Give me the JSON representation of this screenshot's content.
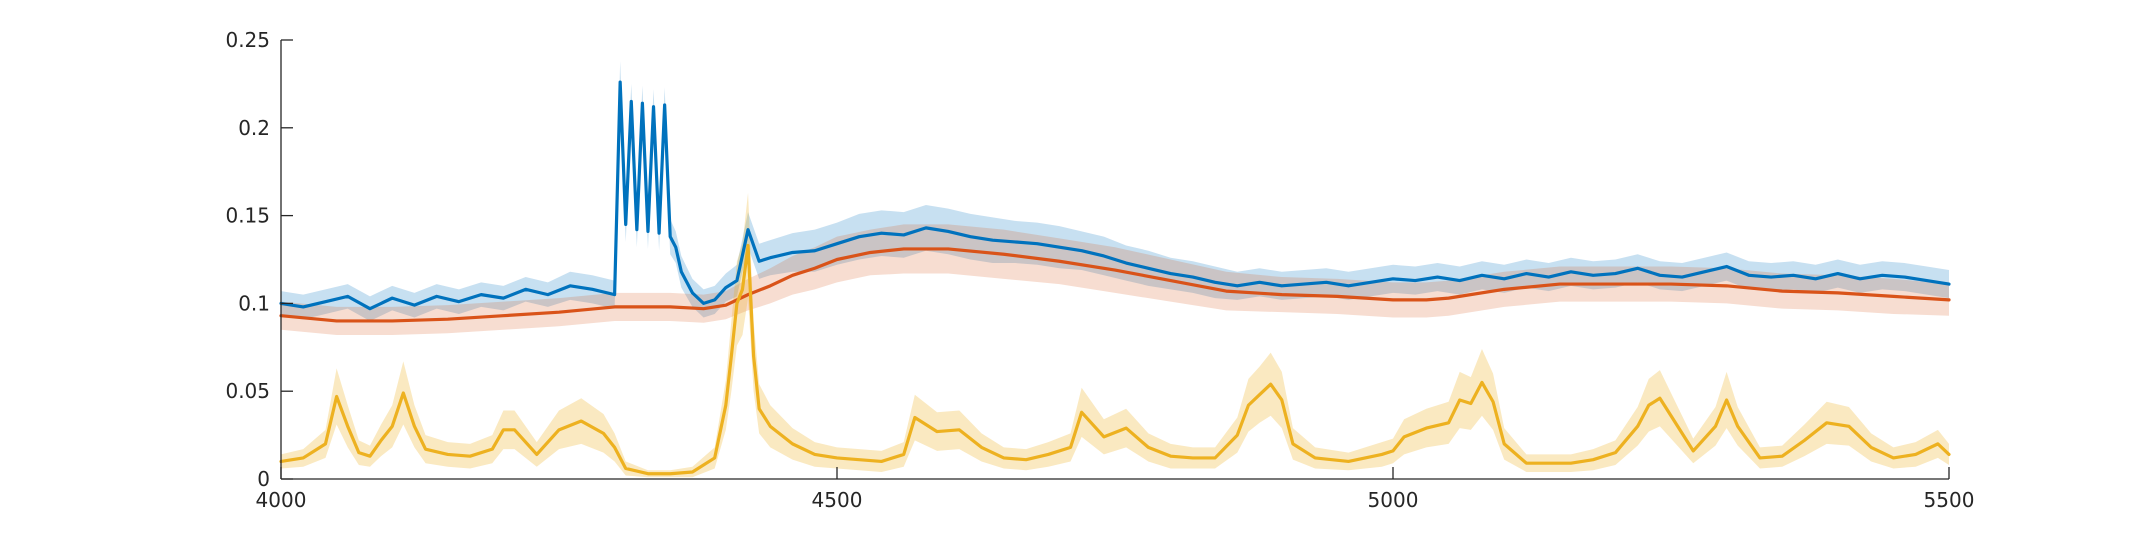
{
  "chart_data": {
    "type": "line",
    "title": "",
    "xlabel": "",
    "ylabel": "",
    "xlim": [
      4000,
      5500
    ],
    "ylim": [
      0,
      0.25
    ],
    "xticks": [
      4000,
      4500,
      5000,
      5500
    ],
    "xtick_labels": [
      "4000",
      "4500",
      "5000",
      "5500"
    ],
    "yticks": [
      0,
      0.05,
      0.1,
      0.15,
      0.2,
      0.25
    ],
    "ytick_labels": [
      "0",
      "0.05",
      "0.1",
      "0.15",
      "0.2",
      "0.25"
    ],
    "grid": false,
    "box": "left-bottom axes only",
    "series": [
      {
        "color": "#0072BD",
        "band_color": "#0072BD",
        "band_opacity": 0.22,
        "x": [
          4000,
          4020,
          4040,
          4060,
          4080,
          4100,
          4120,
          4140,
          4160,
          4180,
          4200,
          4220,
          4240,
          4260,
          4280,
          4300,
          4305,
          4310,
          4315,
          4320,
          4325,
          4330,
          4335,
          4340,
          4345,
          4350,
          4355,
          4360,
          4370,
          4380,
          4390,
          4400,
          4410,
          4420,
          4430,
          4440,
          4460,
          4480,
          4500,
          4520,
          4540,
          4560,
          4580,
          4600,
          4620,
          4640,
          4660,
          4680,
          4700,
          4720,
          4740,
          4760,
          4780,
          4800,
          4820,
          4840,
          4860,
          4880,
          4900,
          4920,
          4940,
          4960,
          4980,
          5000,
          5020,
          5040,
          5060,
          5080,
          5100,
          5120,
          5140,
          5160,
          5180,
          5200,
          5220,
          5240,
          5260,
          5280,
          5300,
          5320,
          5340,
          5360,
          5380,
          5400,
          5420,
          5440,
          5460,
          5480,
          5500
        ],
        "y": [
          0.1,
          0.098,
          0.101,
          0.104,
          0.097,
          0.103,
          0.099,
          0.104,
          0.101,
          0.105,
          0.103,
          0.108,
          0.105,
          0.11,
          0.108,
          0.105,
          0.226,
          0.145,
          0.215,
          0.142,
          0.214,
          0.141,
          0.212,
          0.14,
          0.213,
          0.138,
          0.132,
          0.118,
          0.106,
          0.1,
          0.102,
          0.109,
          0.113,
          0.142,
          0.124,
          0.126,
          0.129,
          0.13,
          0.134,
          0.138,
          0.14,
          0.139,
          0.143,
          0.141,
          0.138,
          0.136,
          0.135,
          0.134,
          0.132,
          0.13,
          0.127,
          0.123,
          0.12,
          0.117,
          0.115,
          0.112,
          0.11,
          0.112,
          0.11,
          0.111,
          0.112,
          0.11,
          0.112,
          0.114,
          0.113,
          0.115,
          0.113,
          0.116,
          0.114,
          0.117,
          0.115,
          0.118,
          0.116,
          0.117,
          0.12,
          0.116,
          0.115,
          0.118,
          0.121,
          0.116,
          0.115,
          0.116,
          0.114,
          0.117,
          0.114,
          0.116,
          0.115,
          0.113,
          0.111
        ],
        "band": [
          0.007,
          0.007,
          0.007,
          0.007,
          0.007,
          0.007,
          0.007,
          0.007,
          0.007,
          0.007,
          0.007,
          0.007,
          0.007,
          0.008,
          0.008,
          0.008,
          0.012,
          0.01,
          0.01,
          0.01,
          0.01,
          0.01,
          0.01,
          0.01,
          0.01,
          0.01,
          0.009,
          0.009,
          0.008,
          0.008,
          0.008,
          0.008,
          0.009,
          0.01,
          0.01,
          0.01,
          0.011,
          0.012,
          0.012,
          0.013,
          0.013,
          0.013,
          0.013,
          0.013,
          0.013,
          0.013,
          0.012,
          0.012,
          0.012,
          0.011,
          0.011,
          0.01,
          0.01,
          0.009,
          0.009,
          0.009,
          0.008,
          0.008,
          0.008,
          0.008,
          0.008,
          0.008,
          0.008,
          0.008,
          0.008,
          0.008,
          0.008,
          0.008,
          0.008,
          0.008,
          0.008,
          0.008,
          0.008,
          0.008,
          0.008,
          0.008,
          0.008,
          0.008,
          0.008,
          0.008,
          0.008,
          0.008,
          0.008,
          0.008,
          0.008,
          0.008,
          0.008,
          0.008,
          0.008
        ]
      },
      {
        "color": "#D95319",
        "band_color": "#D95319",
        "band_opacity": 0.2,
        "x": [
          4000,
          4050,
          4100,
          4150,
          4200,
          4250,
          4300,
          4350,
          4380,
          4400,
          4420,
          4440,
          4460,
          4480,
          4500,
          4530,
          4560,
          4580,
          4600,
          4650,
          4700,
          4750,
          4800,
          4850,
          4900,
          4950,
          5000,
          5030,
          5050,
          5100,
          5150,
          5200,
          5250,
          5300,
          5350,
          5400,
          5450,
          5500
        ],
        "y": [
          0.093,
          0.09,
          0.09,
          0.091,
          0.093,
          0.095,
          0.098,
          0.098,
          0.097,
          0.099,
          0.105,
          0.11,
          0.116,
          0.12,
          0.125,
          0.129,
          0.131,
          0.131,
          0.131,
          0.128,
          0.124,
          0.119,
          0.113,
          0.107,
          0.105,
          0.104,
          0.102,
          0.102,
          0.103,
          0.108,
          0.111,
          0.111,
          0.111,
          0.11,
          0.107,
          0.106,
          0.104,
          0.102
        ],
        "band": [
          0.008,
          0.008,
          0.008,
          0.008,
          0.008,
          0.008,
          0.008,
          0.008,
          0.008,
          0.008,
          0.009,
          0.01,
          0.011,
          0.012,
          0.013,
          0.013,
          0.014,
          0.014,
          0.014,
          0.014,
          0.013,
          0.013,
          0.012,
          0.011,
          0.01,
          0.01,
          0.01,
          0.01,
          0.01,
          0.01,
          0.01,
          0.01,
          0.01,
          0.01,
          0.01,
          0.01,
          0.01,
          0.009
        ]
      },
      {
        "color": "#EDB120",
        "band_color": "#EDB120",
        "band_opacity": 0.28,
        "x": [
          4000,
          4020,
          4040,
          4050,
          4060,
          4070,
          4080,
          4090,
          4100,
          4110,
          4120,
          4130,
          4150,
          4170,
          4190,
          4200,
          4210,
          4230,
          4250,
          4270,
          4290,
          4300,
          4310,
          4330,
          4350,
          4370,
          4390,
          4400,
          4405,
          4410,
          4415,
          4420,
          4425,
          4430,
          4440,
          4460,
          4480,
          4500,
          4520,
          4540,
          4560,
          4570,
          4590,
          4610,
          4630,
          4650,
          4670,
          4690,
          4710,
          4720,
          4740,
          4760,
          4780,
          4800,
          4820,
          4840,
          4860,
          4870,
          4880,
          4890,
          4900,
          4910,
          4930,
          4960,
          4990,
          5000,
          5010,
          5030,
          5050,
          5060,
          5070,
          5080,
          5090,
          5100,
          5120,
          5140,
          5160,
          5180,
          5200,
          5220,
          5230,
          5240,
          5250,
          5270,
          5290,
          5300,
          5310,
          5330,
          5350,
          5370,
          5390,
          5410,
          5430,
          5450,
          5470,
          5490,
          5500
        ],
        "y": [
          0.01,
          0.012,
          0.02,
          0.047,
          0.03,
          0.015,
          0.013,
          0.022,
          0.03,
          0.049,
          0.03,
          0.017,
          0.014,
          0.013,
          0.017,
          0.028,
          0.028,
          0.014,
          0.028,
          0.033,
          0.026,
          0.018,
          0.006,
          0.003,
          0.003,
          0.004,
          0.012,
          0.042,
          0.07,
          0.1,
          0.108,
          0.133,
          0.07,
          0.04,
          0.03,
          0.02,
          0.014,
          0.012,
          0.011,
          0.01,
          0.014,
          0.035,
          0.027,
          0.028,
          0.018,
          0.012,
          0.011,
          0.014,
          0.018,
          0.038,
          0.024,
          0.029,
          0.018,
          0.013,
          0.012,
          0.012,
          0.025,
          0.042,
          0.048,
          0.054,
          0.045,
          0.02,
          0.012,
          0.01,
          0.014,
          0.016,
          0.024,
          0.029,
          0.032,
          0.045,
          0.043,
          0.055,
          0.044,
          0.02,
          0.009,
          0.009,
          0.009,
          0.011,
          0.015,
          0.03,
          0.042,
          0.046,
          0.036,
          0.016,
          0.03,
          0.045,
          0.03,
          0.012,
          0.013,
          0.022,
          0.032,
          0.03,
          0.018,
          0.012,
          0.014,
          0.02,
          0.014
        ],
        "band": [
          0.004,
          0.005,
          0.008,
          0.016,
          0.012,
          0.007,
          0.006,
          0.009,
          0.012,
          0.018,
          0.012,
          0.008,
          0.007,
          0.007,
          0.008,
          0.011,
          0.011,
          0.007,
          0.011,
          0.013,
          0.011,
          0.008,
          0.004,
          0.002,
          0.002,
          0.003,
          0.006,
          0.014,
          0.02,
          0.024,
          0.026,
          0.03,
          0.02,
          0.014,
          0.012,
          0.009,
          0.007,
          0.006,
          0.006,
          0.006,
          0.007,
          0.013,
          0.011,
          0.011,
          0.008,
          0.006,
          0.006,
          0.007,
          0.008,
          0.014,
          0.01,
          0.011,
          0.008,
          0.007,
          0.006,
          0.006,
          0.01,
          0.015,
          0.016,
          0.018,
          0.016,
          0.009,
          0.006,
          0.005,
          0.007,
          0.007,
          0.01,
          0.011,
          0.012,
          0.016,
          0.015,
          0.019,
          0.016,
          0.009,
          0.005,
          0.005,
          0.005,
          0.006,
          0.007,
          0.011,
          0.015,
          0.016,
          0.013,
          0.007,
          0.011,
          0.016,
          0.011,
          0.006,
          0.006,
          0.009,
          0.012,
          0.011,
          0.008,
          0.006,
          0.007,
          0.008,
          0.006
        ]
      }
    ]
  }
}
